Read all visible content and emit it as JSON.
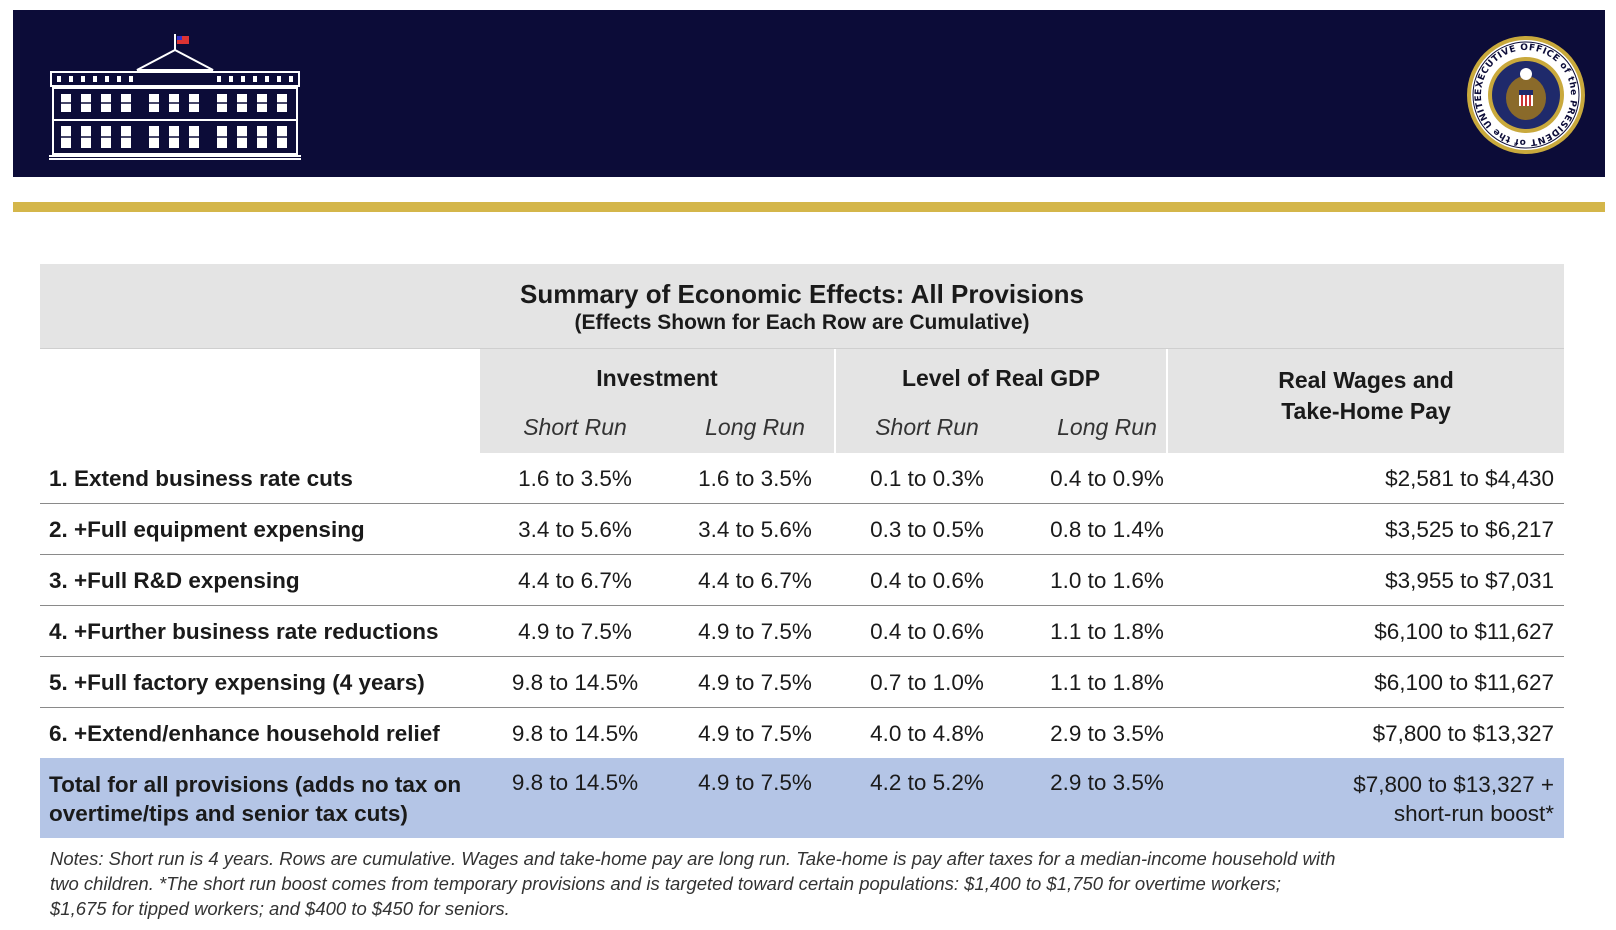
{
  "header": {
    "logo": "white-house-logo",
    "seal": "executive-office-of-the-president-seal",
    "seal_text": "EXECUTIVE OFFICE of the PRESIDENT of the UNITED STATES",
    "banner_color": "#0c0c38",
    "accent_color": "#d4b64a"
  },
  "table": {
    "title": "Summary of Economic Effects: All Provisions",
    "subtitle": "(Effects Shown for Each Row are Cumulative)",
    "groups": {
      "investment": "Investment",
      "gdp": "Level of Real GDP",
      "wages_line1": "Real Wages and",
      "wages_line2": "Take-Home Pay"
    },
    "subheaders": {
      "inv_short": "Short Run",
      "inv_long": "Long Run",
      "gdp_short": "Short Run",
      "gdp_long": "Long Run"
    },
    "rows": [
      {
        "label": "1. Extend business rate cuts",
        "inv_short": "1.6 to 3.5%",
        "inv_long": "1.6 to 3.5%",
        "gdp_short": "0.1 to 0.3%",
        "gdp_long": "0.4 to 0.9%",
        "wages": "$2,581 to $4,430"
      },
      {
        "label": "2. +Full equipment expensing",
        "inv_short": "3.4 to 5.6%",
        "inv_long": "3.4 to 5.6%",
        "gdp_short": "0.3 to 0.5%",
        "gdp_long": "0.8 to 1.4%",
        "wages": "$3,525 to $6,217"
      },
      {
        "label": "3. +Full R&D expensing",
        "inv_short": "4.4 to 6.7%",
        "inv_long": "4.4 to 6.7%",
        "gdp_short": "0.4 to 0.6%",
        "gdp_long": "1.0 to 1.6%",
        "wages": "$3,955 to $7,031"
      },
      {
        "label": "4. +Further business rate reductions",
        "inv_short": "4.9 to 7.5%",
        "inv_long": "4.9 to 7.5%",
        "gdp_short": "0.4 to 0.6%",
        "gdp_long": "1.1 to 1.8%",
        "wages": "$6,100 to $11,627"
      },
      {
        "label": "5. +Full factory expensing (4 years)",
        "inv_short": "9.8 to 14.5%",
        "inv_long": "4.9 to 7.5%",
        "gdp_short": "0.7 to 1.0%",
        "gdp_long": "1.1 to 1.8%",
        "wages": "$6,100 to $11,627"
      },
      {
        "label": "6. +Extend/enhance household relief",
        "inv_short": "9.8 to 14.5%",
        "inv_long": "4.9 to 7.5%",
        "gdp_short": "4.0 to 4.8%",
        "gdp_long": "2.9 to 3.5%",
        "wages": "$7,800 to $13,327"
      }
    ],
    "total": {
      "label_line1": "Total for all provisions (adds no tax on",
      "label_line2": "overtime/tips and senior tax cuts)",
      "inv_short": "9.8 to 14.5%",
      "inv_long": "4.9 to 7.5%",
      "gdp_short": "4.2 to 5.2%",
      "gdp_long": "2.9 to 3.5%",
      "wages_line1": "$7,800 to $13,327 +",
      "wages_line2": "short-run boost*"
    },
    "total_row_color": "#b4c5e6"
  },
  "notes": {
    "line1": "Notes: Short run is 4 years. Rows are cumulative. Wages and take-home pay are long run. Take-home is pay after taxes for a median-income household with",
    "line2": "two children. *The short run boost comes from temporary provisions and is targeted toward certain populations: $1,400 to $1,750 for overtime workers;",
    "line3": "$1,675 for tipped workers; and $400 to $450 for seniors."
  }
}
